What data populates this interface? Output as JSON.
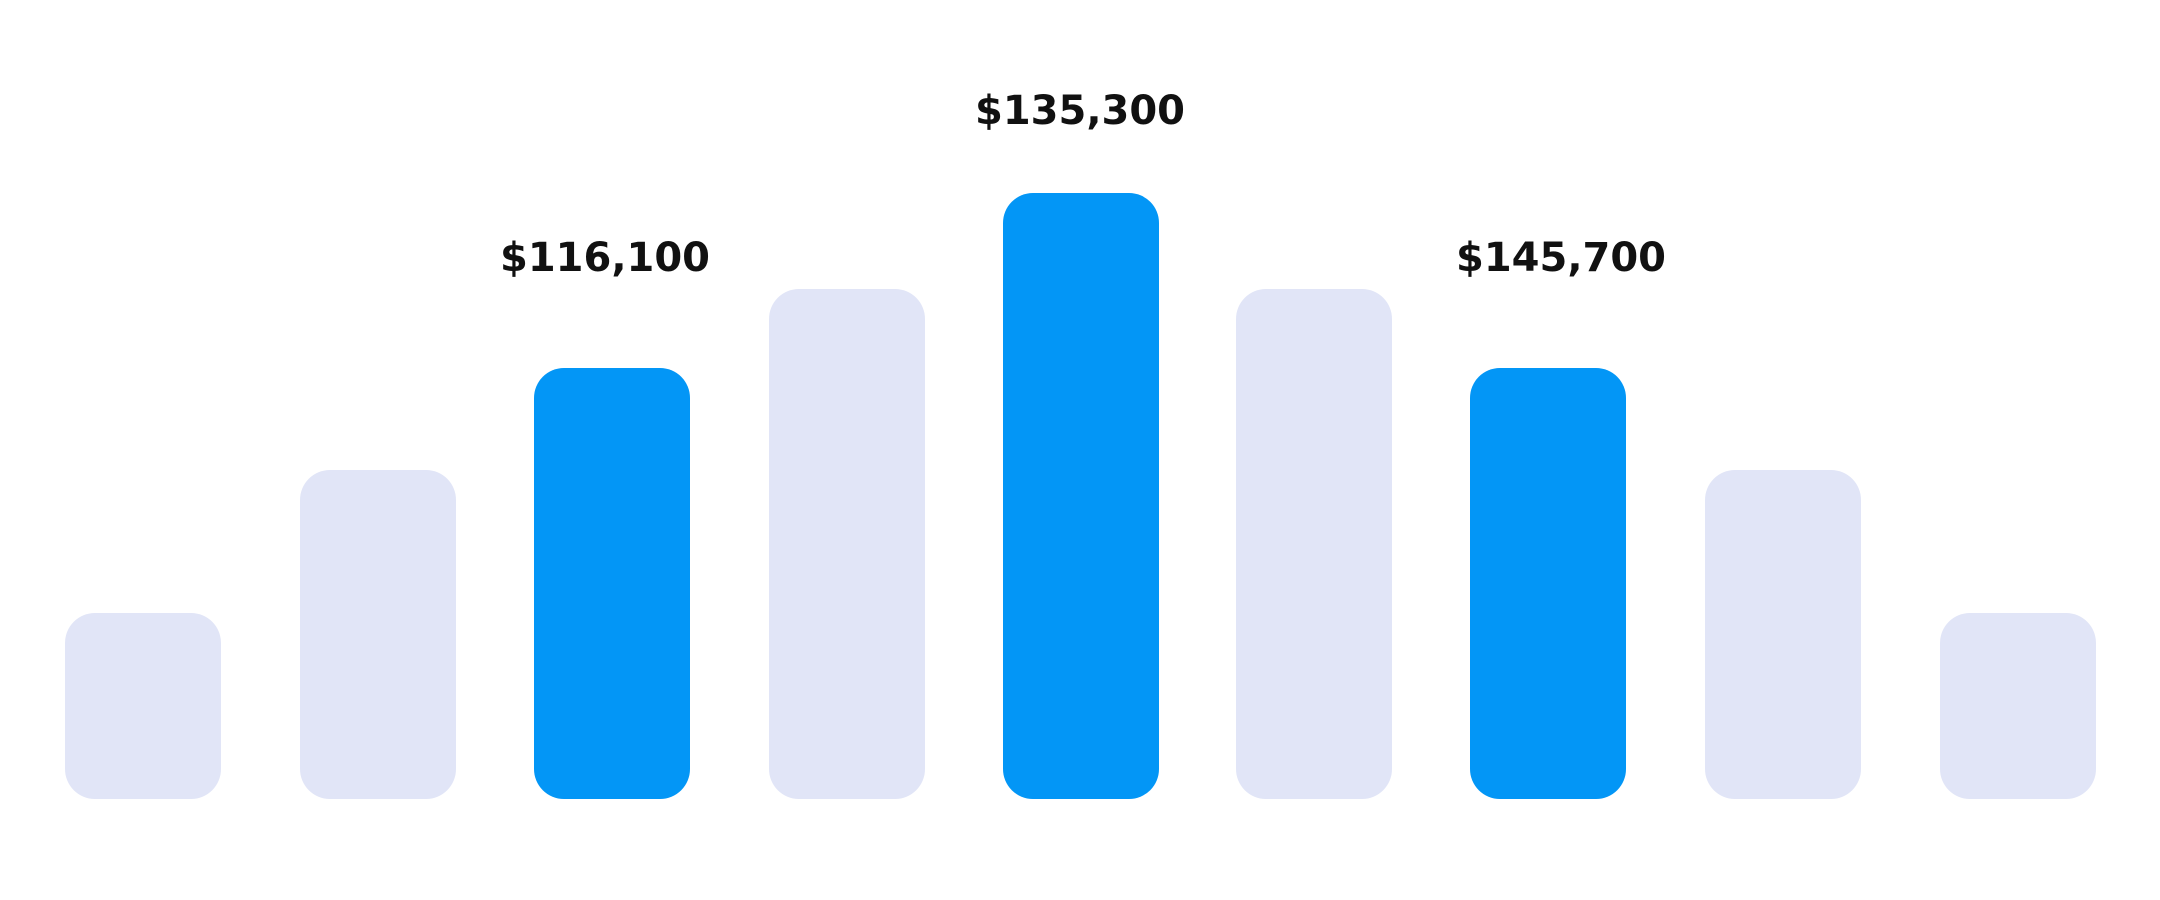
{
  "annotations": [
    "$116,100",
    "$135,300",
    "$145,700"
  ]
}
